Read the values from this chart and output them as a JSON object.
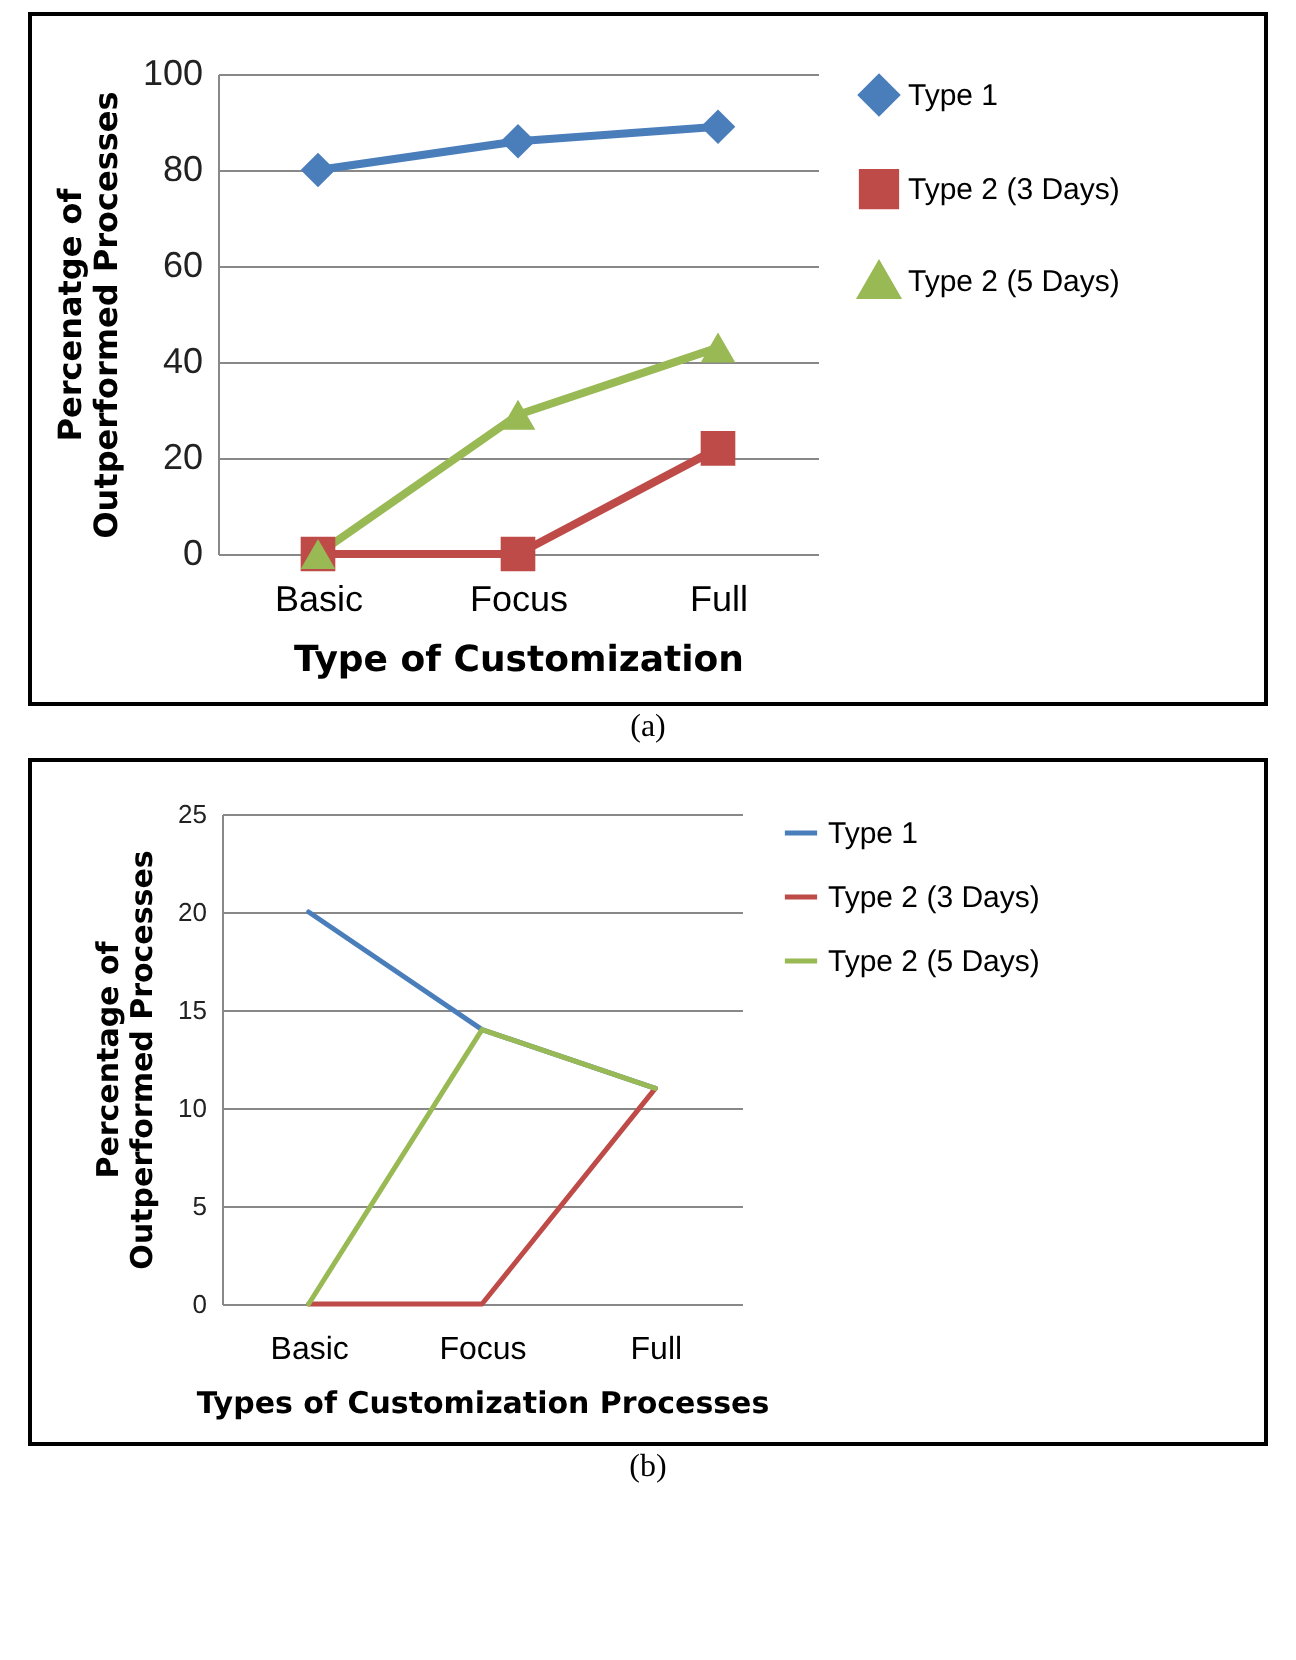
{
  "chart_data": [
    {
      "type": "line",
      "categories": [
        "Basic",
        "Focus",
        "Full"
      ],
      "xlabel": "Type of Customization",
      "ylabel": "Percenatge of\nOutperformed Processes",
      "ylim": [
        0,
        100
      ],
      "yticks": [
        0,
        20,
        40,
        60,
        80,
        100
      ],
      "grid": "y",
      "legend": "right",
      "annotations": [
        "(a)"
      ],
      "series": [
        {
          "name": "Type 1",
          "color": "#4a7ebb",
          "marker": "diamond",
          "values": [
            80,
            86,
            89
          ]
        },
        {
          "name": "Type 2 (3 Days)",
          "color": "#be4b48",
          "marker": "square",
          "values": [
            0,
            0,
            22
          ]
        },
        {
          "name": "Type 2 (5 Days)",
          "color": "#98b954",
          "marker": "triangle",
          "values": [
            0,
            29,
            43
          ]
        }
      ]
    },
    {
      "type": "line",
      "categories": [
        "Basic",
        "Focus",
        "Full"
      ],
      "xlabel": "Types of Customization Processes",
      "ylabel": "Percentage of\nOutperformed Processes",
      "ylim": [
        0,
        25
      ],
      "yticks": [
        0,
        5,
        10,
        15,
        20,
        25
      ],
      "grid": "y",
      "legend": "right",
      "annotations": [
        "(b)"
      ],
      "series": [
        {
          "name": "Type 1",
          "color": "#4a7ebb",
          "values": [
            20,
            14,
            11
          ]
        },
        {
          "name": "Type 2 (3 Days)",
          "color": "#be4b48",
          "values": [
            0,
            0,
            11
          ]
        },
        {
          "name": "Type 2 (5 Days)",
          "color": "#98b954",
          "values": [
            0,
            14,
            11
          ]
        }
      ]
    }
  ]
}
